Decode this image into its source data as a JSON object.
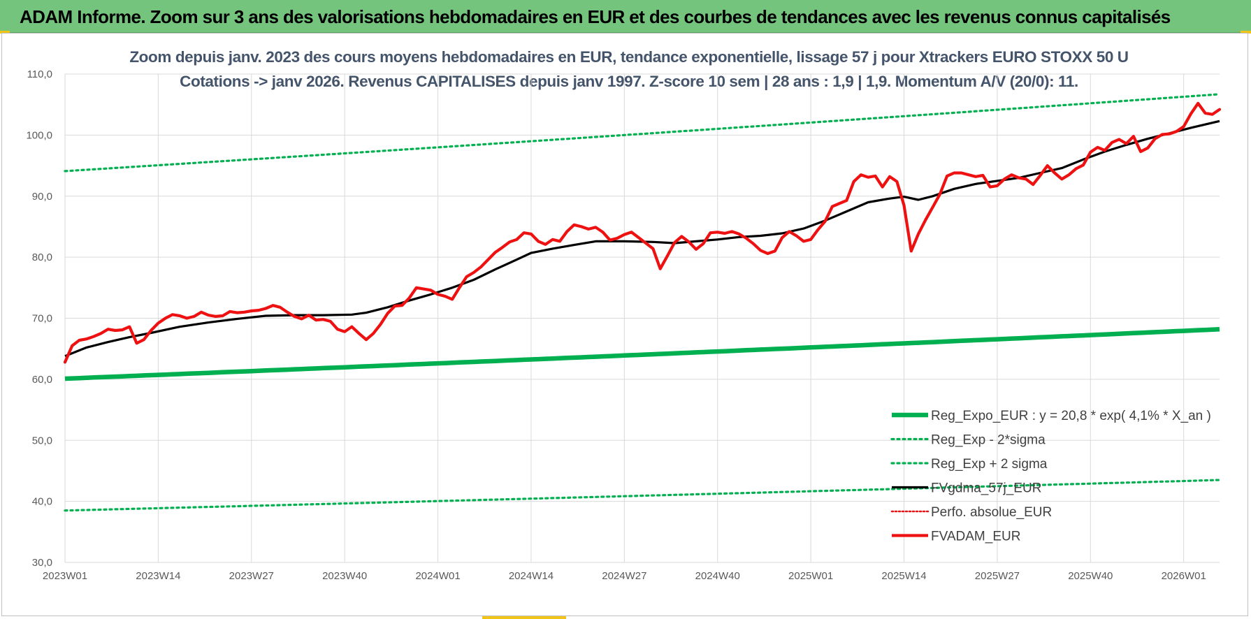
{
  "banner_title": "ADAM Informe. Zoom sur 3 ans des valorisations hebdomadaires en EUR et des courbes de tendances avec les revenus connus capitalisés",
  "colors": {
    "banner": "#75c47e",
    "green": "#00b050",
    "red": "#ee1111",
    "black": "#000000",
    "title": "#44546a"
  },
  "chart_data": {
    "type": "line",
    "title": "Zoom depuis janv. 2023 des cours moyens hebdomadaires en EUR, tendance exponentielle, lissage 57 j pour Xtrackers EURO STOXX 50 U",
    "subtitle": "Cotations -> janv 2026. Revenus CAPITALISES depuis janv 1997. Z-score 10 sem | 28 ans : 1,9 | 1,9. Momentum A/V (20/0): 11.",
    "xlabel": "",
    "ylabel": "",
    "ylim": [
      30,
      110
    ],
    "y_ticks": [
      "30,0",
      "40,0",
      "50,0",
      "60,0",
      "70,0",
      "80,0",
      "90,0",
      "100,0",
      "110,0"
    ],
    "x_ticks": [
      {
        "label": "2023W01",
        "week": 0
      },
      {
        "label": "2023W14",
        "week": 13
      },
      {
        "label": "2023W27",
        "week": 26
      },
      {
        "label": "2023W40",
        "week": 39
      },
      {
        "label": "2024W01",
        "week": 52
      },
      {
        "label": "2024W14",
        "week": 65
      },
      {
        "label": "2024W27",
        "week": 78
      },
      {
        "label": "2024W40",
        "week": 91
      },
      {
        "label": "2025W01",
        "week": 104
      },
      {
        "label": "2025W14",
        "week": 117
      },
      {
        "label": "2025W27",
        "week": 130
      },
      {
        "label": "2025W40",
        "week": 143
      },
      {
        "label": "2026W01",
        "week": 156
      }
    ],
    "x_range": [
      0,
      161
    ],
    "gridlines": true,
    "legend_position": "bottom-right",
    "series": [
      {
        "name": "Reg_Expo_EUR : y = 20,8 * exp( 4,1% *  X_an )",
        "style": "solid-thick",
        "color": "#00b050",
        "start": 60.1,
        "end": 68.2
      },
      {
        "name": "Reg_Exp - 2*sigma",
        "style": "dotted",
        "color": "#00b050",
        "start": 38.5,
        "end": 43.5
      },
      {
        "name": "Reg_Exp + 2 sigma",
        "style": "dotted",
        "color": "#00b050",
        "start": 94.1,
        "end": 106.7
      },
      {
        "name": "FVgdma_57j_EUR",
        "style": "solid",
        "color": "#000000",
        "points": [
          [
            0,
            63.8
          ],
          [
            3,
            65.2
          ],
          [
            6,
            66.1
          ],
          [
            9,
            66.9
          ],
          [
            12,
            67.6
          ],
          [
            16,
            68.6
          ],
          [
            20,
            69.3
          ],
          [
            24,
            69.9
          ],
          [
            28,
            70.4
          ],
          [
            32,
            70.5
          ],
          [
            36,
            70.5
          ],
          [
            40,
            70.6
          ],
          [
            42,
            70.9
          ],
          [
            45,
            71.8
          ],
          [
            48,
            72.9
          ],
          [
            51,
            73.9
          ],
          [
            54,
            75.0
          ],
          [
            57,
            76.3
          ],
          [
            60,
            78.0
          ],
          [
            63,
            79.6
          ],
          [
            65,
            80.7
          ],
          [
            68,
            81.4
          ],
          [
            71,
            82.0
          ],
          [
            74,
            82.6
          ],
          [
            78,
            82.6
          ],
          [
            82,
            82.5
          ],
          [
            85,
            82.3
          ],
          [
            88,
            82.6
          ],
          [
            91,
            82.9
          ],
          [
            94,
            83.3
          ],
          [
            97,
            83.5
          ],
          [
            100,
            83.9
          ],
          [
            103,
            84.7
          ],
          [
            106,
            86.0
          ],
          [
            109,
            87.5
          ],
          [
            112,
            89.0
          ],
          [
            115,
            89.6
          ],
          [
            117,
            89.9
          ],
          [
            119,
            89.4
          ],
          [
            121,
            90.0
          ],
          [
            124,
            91.2
          ],
          [
            127,
            92.0
          ],
          [
            130,
            92.5
          ],
          [
            133,
            93.0
          ],
          [
            136,
            93.8
          ],
          [
            139,
            94.6
          ],
          [
            142,
            96.0
          ],
          [
            145,
            97.3
          ],
          [
            148,
            98.4
          ],
          [
            151,
            99.4
          ],
          [
            154,
            100.3
          ],
          [
            157,
            101.2
          ],
          [
            161,
            102.3
          ]
        ]
      },
      {
        "name": "Perfo. absolue_EUR",
        "style": "dotted",
        "color": "#ee1111",
        "points": []
      },
      {
        "name": "FVADAM_EUR",
        "style": "solid-thick",
        "color": "#ee1111",
        "points": [
          [
            0,
            62.8
          ],
          [
            1,
            65.5
          ],
          [
            2,
            66.4
          ],
          [
            3,
            66.6
          ],
          [
            4,
            67.0
          ],
          [
            5,
            67.5
          ],
          [
            6,
            68.2
          ],
          [
            7,
            68.0
          ],
          [
            8,
            68.1
          ],
          [
            9,
            68.6
          ],
          [
            10,
            65.9
          ],
          [
            11,
            66.5
          ],
          [
            12,
            68.0
          ],
          [
            13,
            69.2
          ],
          [
            14,
            70.0
          ],
          [
            15,
            70.6
          ],
          [
            16,
            70.4
          ],
          [
            17,
            70.0
          ],
          [
            18,
            70.3
          ],
          [
            19,
            71.0
          ],
          [
            20,
            70.5
          ],
          [
            21,
            70.3
          ],
          [
            22,
            70.4
          ],
          [
            23,
            71.1
          ],
          [
            24,
            70.9
          ],
          [
            25,
            71.0
          ],
          [
            26,
            71.2
          ],
          [
            27,
            71.3
          ],
          [
            28,
            71.6
          ],
          [
            29,
            72.1
          ],
          [
            30,
            71.8
          ],
          [
            31,
            71.0
          ],
          [
            32,
            70.3
          ],
          [
            33,
            69.9
          ],
          [
            34,
            70.5
          ],
          [
            35,
            69.7
          ],
          [
            36,
            69.8
          ],
          [
            37,
            69.5
          ],
          [
            38,
            68.2
          ],
          [
            39,
            67.8
          ],
          [
            40,
            68.6
          ],
          [
            41,
            67.5
          ],
          [
            42,
            66.5
          ],
          [
            43,
            67.5
          ],
          [
            44,
            69.0
          ],
          [
            45,
            70.8
          ],
          [
            46,
            72.0
          ],
          [
            47,
            72.1
          ],
          [
            48,
            73.3
          ],
          [
            49,
            75.0
          ],
          [
            50,
            74.8
          ],
          [
            51,
            74.6
          ],
          [
            52,
            73.9
          ],
          [
            53,
            73.6
          ],
          [
            54,
            73.1
          ],
          [
            55,
            75.0
          ],
          [
            56,
            76.8
          ],
          [
            57,
            77.5
          ],
          [
            58,
            78.4
          ],
          [
            59,
            79.6
          ],
          [
            60,
            80.8
          ],
          [
            61,
            81.6
          ],
          [
            62,
            82.5
          ],
          [
            63,
            82.9
          ],
          [
            64,
            84.0
          ],
          [
            65,
            83.8
          ],
          [
            66,
            82.6
          ],
          [
            67,
            82.1
          ],
          [
            68,
            82.9
          ],
          [
            69,
            82.6
          ],
          [
            70,
            84.2
          ],
          [
            71,
            85.3
          ],
          [
            72,
            85.0
          ],
          [
            73,
            84.6
          ],
          [
            74,
            84.9
          ],
          [
            75,
            84.1
          ],
          [
            76,
            82.8
          ],
          [
            77,
            83.1
          ],
          [
            78,
            83.7
          ],
          [
            79,
            84.1
          ],
          [
            80,
            83.2
          ],
          [
            81,
            82.3
          ],
          [
            82,
            81.4
          ],
          [
            83,
            78.1
          ],
          [
            84,
            80.2
          ],
          [
            85,
            82.4
          ],
          [
            86,
            83.4
          ],
          [
            87,
            82.5
          ],
          [
            88,
            81.3
          ],
          [
            89,
            82.2
          ],
          [
            90,
            84.0
          ],
          [
            91,
            84.1
          ],
          [
            92,
            83.9
          ],
          [
            93,
            84.2
          ],
          [
            94,
            83.8
          ],
          [
            95,
            83.1
          ],
          [
            96,
            82.2
          ],
          [
            97,
            81.1
          ],
          [
            98,
            80.6
          ],
          [
            99,
            81.0
          ],
          [
            100,
            83.2
          ],
          [
            101,
            84.2
          ],
          [
            102,
            83.5
          ],
          [
            103,
            82.6
          ],
          [
            104,
            82.9
          ],
          [
            105,
            84.5
          ],
          [
            106,
            85.9
          ],
          [
            107,
            88.3
          ],
          [
            108,
            88.8
          ],
          [
            109,
            89.3
          ],
          [
            110,
            92.4
          ],
          [
            111,
            93.5
          ],
          [
            112,
            93.1
          ],
          [
            113,
            93.3
          ],
          [
            114,
            91.5
          ],
          [
            115,
            93.2
          ],
          [
            116,
            92.4
          ],
          [
            117,
            88.5
          ],
          [
            118,
            81.0
          ],
          [
            119,
            83.8
          ],
          [
            120,
            86.1
          ],
          [
            121,
            88.2
          ],
          [
            122,
            90.3
          ],
          [
            123,
            93.3
          ],
          [
            124,
            93.8
          ],
          [
            125,
            93.8
          ],
          [
            126,
            93.5
          ],
          [
            127,
            93.2
          ],
          [
            128,
            93.4
          ],
          [
            129,
            91.5
          ],
          [
            130,
            91.7
          ],
          [
            131,
            92.8
          ],
          [
            132,
            93.5
          ],
          [
            133,
            93.0
          ],
          [
            134,
            92.8
          ],
          [
            135,
            91.9
          ],
          [
            136,
            93.4
          ],
          [
            137,
            95.0
          ],
          [
            138,
            93.8
          ],
          [
            139,
            92.8
          ],
          [
            140,
            93.5
          ],
          [
            141,
            94.5
          ],
          [
            142,
            95.1
          ],
          [
            143,
            97.2
          ],
          [
            144,
            98.0
          ],
          [
            145,
            97.5
          ],
          [
            146,
            98.8
          ],
          [
            147,
            99.3
          ],
          [
            148,
            98.6
          ],
          [
            149,
            99.8
          ],
          [
            150,
            97.3
          ],
          [
            151,
            97.9
          ],
          [
            152,
            99.4
          ],
          [
            153,
            100.1
          ],
          [
            154,
            100.2
          ],
          [
            155,
            100.6
          ],
          [
            156,
            101.4
          ],
          [
            157,
            103.5
          ],
          [
            158,
            105.2
          ],
          [
            159,
            103.6
          ],
          [
            160,
            103.4
          ],
          [
            161,
            104.2
          ]
        ]
      }
    ]
  }
}
